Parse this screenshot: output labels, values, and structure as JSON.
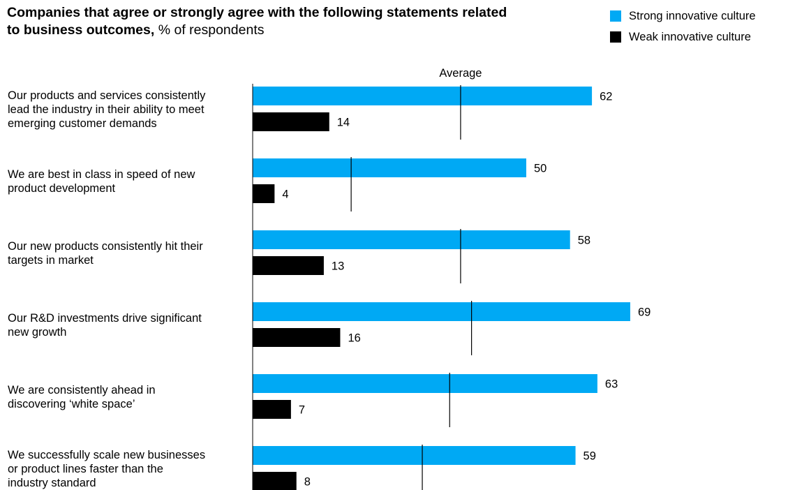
{
  "title": {
    "bold": "Companies that agree or strongly agree with the following statements related to business outcomes,",
    "normal": "% of respondents"
  },
  "colors": {
    "strong": "#00a9f4",
    "weak": "#000000",
    "axis": "#000000"
  },
  "legend": [
    {
      "label": "Strong innovative culture",
      "color": "#00a9f4"
    },
    {
      "label": "Weak innovative culture",
      "color": "#000000"
    }
  ],
  "chart_data": {
    "type": "bar",
    "orientation": "horizontal",
    "average_label": "Average",
    "categories": [
      [
        "Our products and services consistently",
        "lead the industry in their ability to meet",
        "emerging customer demands"
      ],
      [
        "We are best in class in speed of new",
        "product development"
      ],
      [
        "Our new products consistently hit their",
        "targets in market"
      ],
      [
        "Our R&D investments drive significant",
        "new growth"
      ],
      [
        "We are consistently ahead in",
        "discovering ‘white space’"
      ],
      [
        "We successfully scale new businesses",
        "or product lines faster than the",
        "industry standard"
      ]
    ],
    "series": [
      {
        "name": "Strong innovative culture",
        "values": [
          62,
          50,
          58,
          69,
          63,
          59
        ]
      },
      {
        "name": "Weak innovative culture",
        "values": [
          14,
          4,
          13,
          16,
          7,
          8
        ]
      }
    ],
    "averages": [
      38,
      18,
      38,
      40,
      36,
      31
    ],
    "xlim": [
      0,
      70
    ],
    "legend_position": "top-right"
  }
}
